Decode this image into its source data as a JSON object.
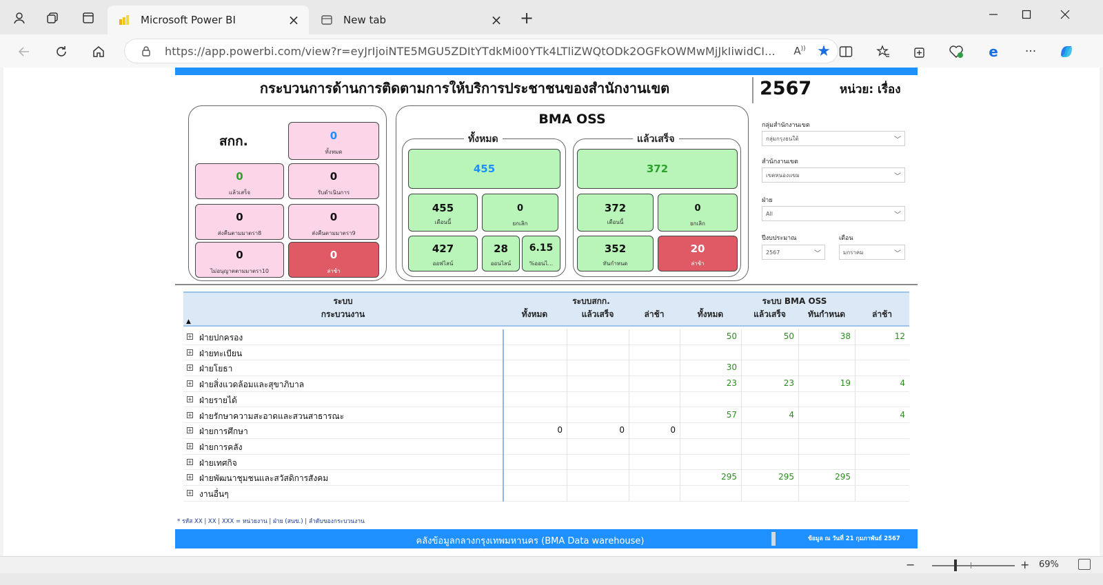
{
  "browser": {
    "tabs": [
      {
        "label": "Microsoft Power BI",
        "active": true
      },
      {
        "label": "New tab",
        "active": false
      }
    ],
    "url": "https://app.powerbi.com/view?r=eyJrIjoiNTE5MGU5ZDItYTdkMi00YTk4LTliZWQtODk2OGFkOWMwMjJkIiwidCI...",
    "zoom": "69%"
  },
  "report": {
    "title": "กระบวนการด้านการติดตามการให้บริการประชาชนของสำนักงานเขต",
    "year": "2567",
    "unit": "หน่วย: เรื่อง",
    "sk": {
      "heading": "สกก.",
      "total": {
        "value": "0",
        "label": "ทั้งหมด"
      },
      "done": {
        "value": "0",
        "label": "แล้วเสร็จ"
      },
      "in_progress": {
        "value": "0",
        "label": "รับดำเนินการ"
      },
      "returned8": {
        "value": "0",
        "label": "ส่งคืนตามมาตรา8"
      },
      "returned9": {
        "value": "0",
        "label": "ส่งคืนตามมาตรา9"
      },
      "denied10": {
        "value": "0",
        "label": "ไม่อนุญาตตามมาตรา10"
      },
      "late": {
        "value": "0",
        "label": "ล่าช้า"
      }
    },
    "oss": {
      "heading": "BMA OSS",
      "all_heading": "ทั้งหมด",
      "done_heading": "แล้วเสร็จ",
      "all_total": "455",
      "all_month": {
        "value": "455",
        "label": "เดือนนี้"
      },
      "all_cancel": {
        "value": "0",
        "label": "ยกเลิก"
      },
      "all_offline": {
        "value": "427",
        "label": "ออฟไลน์"
      },
      "all_online": {
        "value": "28",
        "label": "ออนไลน์"
      },
      "all_online_pct": {
        "value": "6.15",
        "label": "%ออนไ..."
      },
      "done_total": "372",
      "done_month": {
        "value": "372",
        "label": "เดือนนี้"
      },
      "done_cancel": {
        "value": "0",
        "label": "ยกเลิก"
      },
      "done_ontime": {
        "value": "352",
        "label": "ทันกำหนด"
      },
      "done_late": {
        "value": "20",
        "label": "ล่าช้า"
      }
    },
    "filters": {
      "group": {
        "label": "กลุ่มสำนักงานเขต",
        "value": "กลุ่มกรุงธนใต้"
      },
      "district": {
        "label": "สำนักงานเขต",
        "value": "เขตหนองแขม"
      },
      "division": {
        "label": "ฝ่าย",
        "value": "All"
      },
      "fiscal_year": {
        "label": "ปีงบประมาณ",
        "value": "2567"
      },
      "month": {
        "label": "เดือน",
        "value": "มกราคม"
      }
    },
    "table": {
      "group_headers": {
        "system": "ระบบ",
        "sk": "ระบบสกก.",
        "oss": "ระบบ BMA OSS"
      },
      "col_headers": {
        "process": "กระบวนงาน",
        "sk_total": "ทั้งหมด",
        "sk_done": "แล้วเสร็จ",
        "sk_late": "ล่าช้า",
        "oss_total": "ทั้งหมด",
        "oss_done": "แล้วเสร็จ",
        "oss_ontime": "ทันกำหนด",
        "oss_late": "ล่าช้า"
      },
      "rows": [
        {
          "name": "ฝ่ายปกครอง",
          "sk_total": "",
          "sk_done": "",
          "sk_late": "",
          "oss_total": "50",
          "oss_done": "50",
          "oss_ontime": "38",
          "oss_late": "12"
        },
        {
          "name": "ฝ่ายทะเบียน",
          "sk_total": "",
          "sk_done": "",
          "sk_late": "",
          "oss_total": "",
          "oss_done": "",
          "oss_ontime": "",
          "oss_late": ""
        },
        {
          "name": "ฝ่ายโยธา",
          "sk_total": "",
          "sk_done": "",
          "sk_late": "",
          "oss_total": "30",
          "oss_done": "",
          "oss_ontime": "",
          "oss_late": ""
        },
        {
          "name": "ฝ่ายสิ่งแวดล้อมและสุขาภิบาล",
          "sk_total": "",
          "sk_done": "",
          "sk_late": "",
          "oss_total": "23",
          "oss_done": "23",
          "oss_ontime": "19",
          "oss_late": "4"
        },
        {
          "name": "ฝ่ายรายได้",
          "sk_total": "",
          "sk_done": "",
          "sk_late": "",
          "oss_total": "",
          "oss_done": "",
          "oss_ontime": "",
          "oss_late": ""
        },
        {
          "name": "ฝ่ายรักษาความสะอาดและสวนสาธารณะ",
          "sk_total": "",
          "sk_done": "",
          "sk_late": "",
          "oss_total": "57",
          "oss_done": "4",
          "oss_ontime": "",
          "oss_late": "4"
        },
        {
          "name": "ฝ่ายการศึกษา",
          "sk_total": "0",
          "sk_done": "0",
          "sk_late": "0",
          "oss_total": "",
          "oss_done": "",
          "oss_ontime": "",
          "oss_late": ""
        },
        {
          "name": "ฝ่ายการคลัง",
          "sk_total": "",
          "sk_done": "",
          "sk_late": "",
          "oss_total": "",
          "oss_done": "",
          "oss_ontime": "",
          "oss_late": ""
        },
        {
          "name": "ฝ่ายเทศกิจ",
          "sk_total": "",
          "sk_done": "",
          "sk_late": "",
          "oss_total": "",
          "oss_done": "",
          "oss_ontime": "",
          "oss_late": ""
        },
        {
          "name": "ฝ่ายพัฒนาชุมชนและสวัสดิการสังคม",
          "sk_total": "",
          "sk_done": "",
          "sk_late": "",
          "oss_total": "295",
          "oss_done": "295",
          "oss_ontime": "295",
          "oss_late": ""
        },
        {
          "name": "งานอื่นๆ",
          "sk_total": "",
          "sk_done": "",
          "sk_late": "",
          "oss_total": "",
          "oss_done": "",
          "oss_ontime": "",
          "oss_late": ""
        }
      ]
    },
    "footnote": "* รหัส XX | XX | XXX = หน่วยงาน | ฝ่าย (สนข.) | ลำดับของกระบวนงาน",
    "footer_title": "คลังข้อมูลกลางกรุงเทพมหานคร (BMA Data warehouse)",
    "footer_date": "ข้อมูล ณ วันที่ 21 กุมภาพันธ์ 2567"
  },
  "colors": {
    "accent_blue": "#1e90ff",
    "card_pink": "#fdd5e8",
    "card_green": "#b9f5b9",
    "card_red": "#e05a66",
    "value_green": "#2e8b22",
    "value_blue": "#1e90ff"
  }
}
